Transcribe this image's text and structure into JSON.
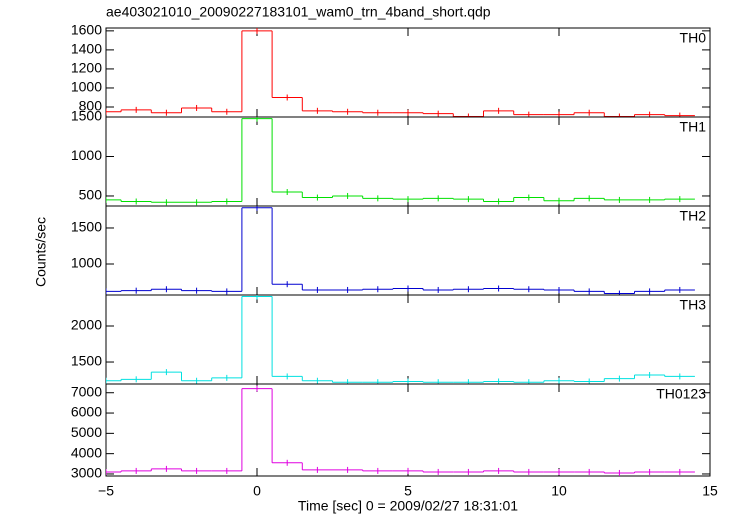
{
  "title": "ae403021010_20090227183101_wam0_trn_4band_short.qdp",
  "xlabel": "Time [sec] 0 = 2009/02/27 18:31:01",
  "ylabel": "Counts/sec",
  "chart_data": [
    {
      "type": "step",
      "label": "TH0",
      "color": "#ff0000",
      "x": [
        -5,
        -4,
        -3,
        -2,
        -1,
        0,
        1,
        2,
        3,
        4,
        5,
        6,
        7,
        8,
        9,
        10,
        11,
        12,
        13,
        14
      ],
      "values": [
        750,
        770,
        740,
        790,
        750,
        1600,
        900,
        760,
        750,
        740,
        740,
        730,
        700,
        760,
        720,
        720,
        740,
        700,
        720,
        710
      ],
      "ylim": [
        695,
        1630
      ],
      "yticks": [
        800,
        1000,
        1200,
        1400,
        1600
      ]
    },
    {
      "type": "step",
      "label": "TH1",
      "color": "#00e000",
      "x": [
        -5,
        -4,
        -3,
        -2,
        -1,
        0,
        1,
        2,
        3,
        4,
        5,
        6,
        7,
        8,
        9,
        10,
        11,
        12,
        13,
        14
      ],
      "values": [
        450,
        430,
        420,
        420,
        430,
        1480,
        550,
        480,
        500,
        470,
        460,
        470,
        460,
        430,
        480,
        440,
        470,
        450,
        450,
        460
      ],
      "ylim": [
        373,
        1500
      ],
      "yticks": [
        500,
        1000,
        1500
      ]
    },
    {
      "type": "step",
      "label": "TH2",
      "color": "#0000d0",
      "x": [
        -5,
        -4,
        -3,
        -2,
        -1,
        0,
        1,
        2,
        3,
        4,
        5,
        6,
        7,
        8,
        9,
        10,
        11,
        12,
        13,
        14
      ],
      "values": [
        620,
        630,
        650,
        630,
        620,
        1780,
        720,
        640,
        640,
        650,
        660,
        640,
        650,
        660,
        650,
        640,
        620,
        590,
        620,
        640
      ],
      "ylim": [
        570,
        1805
      ],
      "yticks": [
        1000,
        1500
      ]
    },
    {
      "type": "step",
      "label": "TH3",
      "color": "#00e0e0",
      "x": [
        -5,
        -4,
        -3,
        -2,
        -1,
        0,
        1,
        2,
        3,
        4,
        5,
        6,
        7,
        8,
        9,
        10,
        11,
        12,
        13,
        14
      ],
      "values": [
        1240,
        1260,
        1360,
        1240,
        1280,
        2410,
        1300,
        1240,
        1220,
        1220,
        1230,
        1220,
        1220,
        1230,
        1220,
        1240,
        1230,
        1270,
        1320,
        1300
      ],
      "ylim": [
        1195,
        2430
      ],
      "yticks": [
        1500,
        2000
      ]
    },
    {
      "type": "step",
      "label": "TH0123",
      "color": "#e000e0",
      "x": [
        -5,
        -4,
        -3,
        -2,
        -1,
        0,
        1,
        2,
        3,
        4,
        5,
        6,
        7,
        8,
        9,
        10,
        11,
        12,
        13,
        14
      ],
      "values": [
        3100,
        3150,
        3250,
        3150,
        3150,
        7200,
        3550,
        3200,
        3200,
        3150,
        3150,
        3100,
        3100,
        3150,
        3100,
        3100,
        3100,
        3050,
        3100,
        3100
      ],
      "ylim": [
        2900,
        7430
      ],
      "yticks": [
        3000,
        4000,
        5000,
        6000,
        7000
      ],
      "xlim": [
        -5,
        15
      ],
      "xticks": [
        {
          "value": -5,
          "label": "−5"
        },
        0,
        5,
        10,
        15
      ]
    }
  ]
}
